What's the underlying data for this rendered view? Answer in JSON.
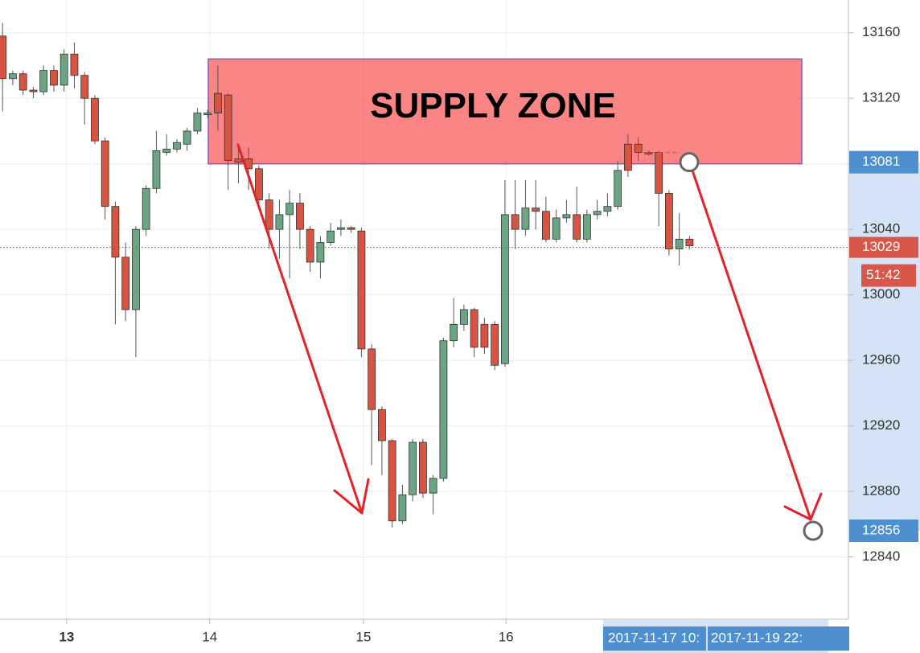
{
  "chart_data": {
    "type": "candlestick",
    "open": [
      13158,
      13132,
      13135,
      13125,
      13124,
      13137,
      13128,
      13147,
      13134,
      13120,
      13094,
      13054,
      13023,
      12991,
      13040,
      13065,
      13087,
      13089,
      13092,
      13100,
      13110,
      13123,
      13122,
      13083,
      13083,
      13077,
      13058,
      13040,
      13049,
      13056,
      13040,
      13020,
      13032,
      13040,
      13041,
      13039,
      12967,
      12930,
      12911,
      12862,
      12878,
      12910,
      12879,
      12888,
      12972,
      12982,
      12991,
      12982,
      12982,
      12958,
      13049,
      13040,
      13053,
      13051,
      13034,
      13047,
      13049,
      13034,
      13049,
      13051,
      13054,
      13092,
      13092,
      13087,
      13087,
      13062,
      13028,
      13034
    ],
    "high": [
      13166,
      13137,
      13137,
      13127,
      13140,
      13140,
      13150,
      13154,
      13136,
      13122,
      13096,
      13057,
      13032,
      13042,
      13067,
      13100,
      13098,
      13095,
      13102,
      13114,
      13113,
      13140,
      13123,
      13092,
      13090,
      13079,
      13062,
      13058,
      13064,
      13062,
      13042,
      13036,
      13044,
      13046,
      13042,
      13041,
      12970,
      12932,
      12912,
      12884,
      12912,
      12912,
      12890,
      12974,
      12998,
      12994,
      12992,
      12986,
      12984,
      13070,
      13070,
      13070,
      13070,
      13060,
      13052,
      13058,
      13066,
      13052,
      13058,
      13062,
      13082,
      13098,
      13096,
      13088,
      13088,
      13064,
      13050,
      13036
    ],
    "low": [
      13112,
      13128,
      13122,
      13120,
      13122,
      13124,
      13124,
      13126,
      13104,
      13092,
      13046,
      12982,
      12984,
      12962,
      13036,
      13062,
      13085,
      13087,
      13088,
      13098,
      13108,
      13100,
      13064,
      13068,
      13064,
      13052,
      13028,
      13022,
      13010,
      13028,
      13014,
      13010,
      13030,
      13036,
      13038,
      12962,
      12896,
      12890,
      12858,
      12860,
      12874,
      12876,
      12866,
      12886,
      12968,
      12978,
      12962,
      12964,
      12954,
      12956,
      13028,
      13036,
      13040,
      13032,
      13032,
      13044,
      13032,
      13032,
      13046,
      13048,
      13052,
      13072,
      13082,
      13085,
      13042,
      13024,
      13018,
      13028
    ],
    "close": [
      13132,
      13135,
      13125,
      13124,
      13137,
      13128,
      13147,
      13134,
      13120,
      13094,
      13054,
      13023,
      12991,
      13040,
      13065,
      13088,
      13089,
      13093,
      13100,
      13111,
      13111,
      13111,
      13082,
      13081,
      13077,
      13058,
      13040,
      13049,
      13056,
      13040,
      13020,
      13032,
      13039,
      13041,
      13040,
      12967,
      12930,
      12911,
      12862,
      12878,
      12910,
      12879,
      12888,
      12972,
      12982,
      12991,
      12968,
      12968,
      12957,
      13049,
      13040,
      13053,
      13051,
      13034,
      13047,
      13049,
      13034,
      13049,
      13051,
      13054,
      13076,
      13076,
      13087,
      13086,
      13062,
      13028,
      13034,
      13030
    ],
    "up_color": "#6ba583",
    "down_color": "#d75442",
    "ylim": [
      12802,
      13180
    ],
    "yticks": [
      12840,
      12880,
      12920,
      12960,
      13000,
      13040,
      13080,
      13120,
      13160
    ],
    "xlim": [
      -0.25,
      82.5
    ],
    "xticks": [
      {
        "value": 6.25,
        "label": "13"
      },
      {
        "value": 20.2,
        "label": "14"
      },
      {
        "value": 35.2,
        "label": "15"
      },
      {
        "value": 49.1,
        "label": "16"
      }
    ],
    "grid": true,
    "zone": {
      "label": "SUPPLY ZONE",
      "low": 13080,
      "high": 13144
    },
    "current_price": {
      "value": 13029,
      "countdown": "51:42"
    },
    "range_markers": [
      13081,
      12856
    ],
    "time_range": [
      "2017-11-17 10:",
      "2017-11-19 22:"
    ]
  }
}
